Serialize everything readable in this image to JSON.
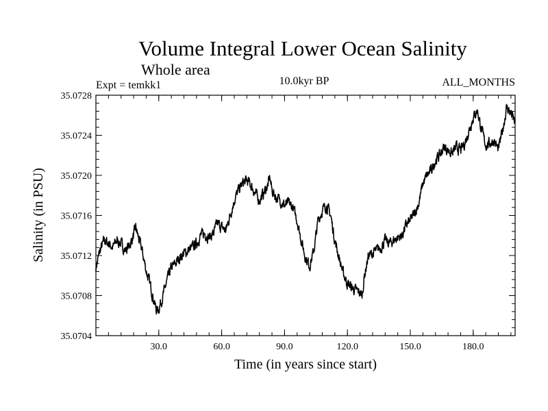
{
  "chart_data": {
    "type": "line",
    "title": "Volume Integral Lower Ocean Salinity",
    "subtitle": "Whole area",
    "annotations": {
      "left": "Expt = temkk1",
      "center": "10.0kyr BP",
      "right": "ALL_MONTHS"
    },
    "xlabel": "Time (in years since start)",
    "ylabel": "Salinity (in PSU)",
    "xlim": [
      0,
      200
    ],
    "ylim": [
      35.0704,
      35.0728
    ],
    "x_ticks": [
      30,
      60,
      90,
      120,
      150,
      180
    ],
    "x_tick_labels": [
      "30.0",
      "60.0",
      "90.0",
      "120.0",
      "150.0",
      "180.0"
    ],
    "y_ticks": [
      35.0704,
      35.0708,
      35.0712,
      35.0716,
      35.072,
      35.0724,
      35.0728
    ],
    "y_tick_labels": [
      "35.0704",
      "35.0708",
      "35.0712",
      "35.0716",
      "35.0720",
      "35.0724",
      "35.0728"
    ],
    "grid": false,
    "series": [
      {
        "name": "Salinity",
        "color": "#000000",
        "x": [
          0,
          2,
          4,
          6,
          8,
          10,
          12,
          14,
          16,
          18,
          19,
          20,
          22,
          24,
          26,
          28,
          29,
          30,
          32,
          34,
          36,
          38,
          40,
          42,
          44,
          46,
          48,
          50,
          52,
          54,
          56,
          58,
          60,
          62,
          64,
          66,
          68,
          70,
          72,
          74,
          76,
          78,
          80,
          82,
          83,
          84,
          86,
          88,
          90,
          92,
          94,
          96,
          98,
          100,
          102,
          104,
          106,
          108,
          110,
          112,
          114,
          116,
          118,
          120,
          122,
          124,
          126,
          127,
          128,
          130,
          132,
          134,
          136,
          138,
          140,
          142,
          144,
          146,
          148,
          150,
          152,
          154,
          156,
          158,
          160,
          162,
          164,
          166,
          168,
          170,
          172,
          174,
          176,
          178,
          180,
          182,
          184,
          186,
          188,
          190,
          192,
          194,
          196,
          198,
          200
        ],
        "y": [
          35.07108,
          35.07125,
          35.07135,
          35.07132,
          35.07128,
          35.07135,
          35.07132,
          35.07125,
          35.0713,
          35.0714,
          35.07148,
          35.0714,
          35.07125,
          35.07105,
          35.0709,
          35.07072,
          35.07065,
          35.07067,
          35.0708,
          35.07095,
          35.07108,
          35.07112,
          35.07118,
          35.07122,
          35.07125,
          35.07128,
          35.07132,
          35.0714,
          35.07142,
          35.07138,
          35.07142,
          35.07152,
          35.07148,
          35.07145,
          35.0716,
          35.07175,
          35.07185,
          35.07192,
          35.07195,
          35.0719,
          35.07182,
          35.07175,
          35.07182,
          35.0719,
          35.07198,
          35.07185,
          35.07178,
          35.07175,
          35.0717,
          35.07172,
          35.07168,
          35.07155,
          35.07135,
          35.07118,
          35.0711,
          35.07125,
          35.07155,
          35.07165,
          35.0717,
          35.0716,
          35.07135,
          35.07118,
          35.07102,
          35.07092,
          35.07088,
          35.07085,
          35.07083,
          35.0708,
          35.07098,
          35.0712,
          35.07122,
          35.07125,
          35.07128,
          35.07135,
          35.07132,
          35.07135,
          35.07138,
          35.0714,
          35.0715,
          35.07155,
          35.07162,
          35.07172,
          35.07192,
          35.072,
          35.07205,
          35.07215,
          35.0722,
          35.07228,
          35.07225,
          35.07222,
          35.07228,
          35.07225,
          35.07232,
          35.07245,
          35.07258,
          35.07265,
          35.07245,
          35.0723,
          35.07232,
          35.07235,
          35.07225,
          35.07245,
          35.07268,
          35.07262,
          35.07252
        ]
      }
    ]
  }
}
